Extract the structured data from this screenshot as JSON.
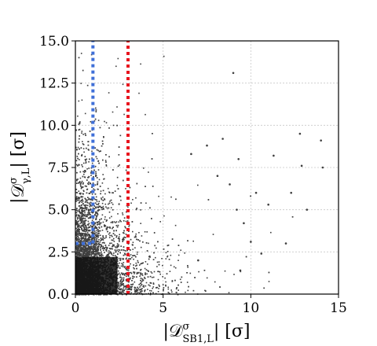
{
  "chart_data": {
    "type": "scatter",
    "xlabel": "|D^σ_SB1,L| [σ]",
    "ylabel": "|D^σ_γ,L| [σ]",
    "xlabel_parts": {
      "main": "|𝒟",
      "sup": "σ",
      "sub": "SB1,L",
      "tail": "| [σ]"
    },
    "ylabel_parts": {
      "main": "|𝒟",
      "sup": "σ",
      "sub": "γ,L",
      "tail": "| [σ]"
    },
    "xlim": [
      0,
      15
    ],
    "ylim": [
      0,
      15
    ],
    "xticks": [
      0,
      5,
      10,
      15
    ],
    "xtick_labels": [
      "0",
      "5",
      "10",
      "15"
    ],
    "yticks": [
      0,
      2.5,
      5,
      7.5,
      10,
      12.5,
      15
    ],
    "ytick_labels": [
      "0.0",
      "2.5",
      "5.0",
      "7.5",
      "10.0",
      "12.5",
      "15.0"
    ],
    "grid": true,
    "point_color": "#3f3f3f",
    "threshold_lines": [
      {
        "color": "#3f6fd8",
        "style": "dotted",
        "segments": [
          {
            "x": [
              1,
              1
            ],
            "y": [
              3,
              15
            ]
          },
          {
            "x": [
              0,
              1
            ],
            "y": [
              3,
              3
            ]
          }
        ]
      },
      {
        "color": "#e8141e",
        "style": "dotted",
        "segments": [
          {
            "x": [
              3,
              3
            ],
            "y": [
              0,
              15
            ]
          }
        ]
      }
    ],
    "series": [
      {
        "points": [
          [
            7.5,
            8.8
          ],
          [
            8.1,
            7.0
          ],
          [
            8.8,
            6.5
          ],
          [
            9.3,
            8.0
          ],
          [
            9.2,
            5.0
          ],
          [
            9.6,
            4.2
          ],
          [
            10.3,
            6.0
          ],
          [
            11.3,
            8.2
          ],
          [
            12.3,
            6.0
          ],
          [
            12.8,
            9.5
          ],
          [
            12.9,
            7.6
          ],
          [
            14.0,
            9.1
          ],
          [
            14.1,
            7.5
          ],
          [
            9.0,
            13.1
          ],
          [
            9.4,
            1.4
          ],
          [
            7.0,
            2.0
          ],
          [
            10.0,
            3.1
          ],
          [
            11.0,
            5.3
          ],
          [
            12.0,
            3.0
          ],
          [
            8.4,
            9.2
          ],
          [
            6.6,
            8.3
          ],
          [
            10.6,
            2.4
          ],
          [
            13.2,
            5.0
          ]
        ]
      }
    ]
  }
}
